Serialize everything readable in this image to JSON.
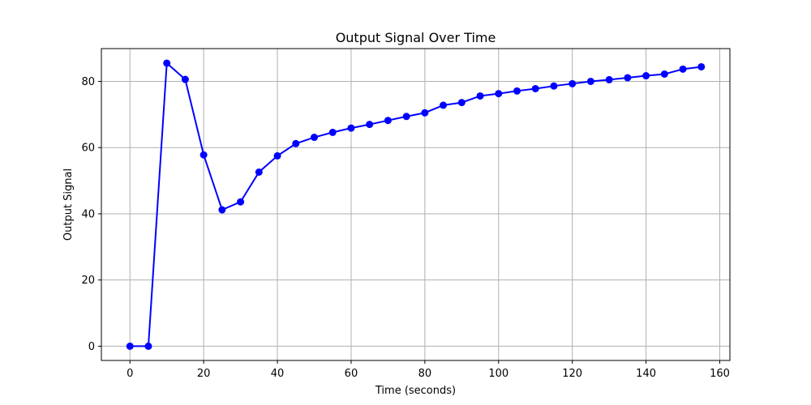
{
  "chart_data": {
    "type": "line",
    "title": "Output Signal Over Time",
    "xlabel": "Time (seconds)",
    "ylabel": "Output Signal",
    "xlim": [
      -7.75,
      162.75
    ],
    "ylim": [
      -4.3,
      89.9
    ],
    "xticks": [
      0,
      20,
      40,
      60,
      80,
      100,
      120,
      140,
      160
    ],
    "yticks": [
      0,
      20,
      40,
      60,
      80
    ],
    "grid": true,
    "color": "#0000ff",
    "marker": "circle",
    "series": [
      {
        "name": "Output Signal",
        "x": [
          0,
          5,
          10,
          15,
          20,
          25,
          30,
          35,
          40,
          45,
          50,
          55,
          60,
          65,
          70,
          75,
          80,
          85,
          90,
          95,
          100,
          105,
          110,
          115,
          120,
          125,
          130,
          135,
          140,
          145,
          150,
          155
        ],
        "y": [
          0,
          0,
          85.5,
          80.6,
          57.8,
          41.2,
          43.6,
          52.6,
          57.5,
          61.2,
          63.1,
          64.6,
          65.9,
          67.0,
          68.2,
          69.4,
          70.5,
          72.8,
          73.6,
          75.6,
          76.3,
          77.1,
          77.8,
          78.6,
          79.3,
          80.0,
          80.5,
          81.1,
          81.7,
          82.2,
          83.7,
          84.4
        ]
      }
    ]
  }
}
